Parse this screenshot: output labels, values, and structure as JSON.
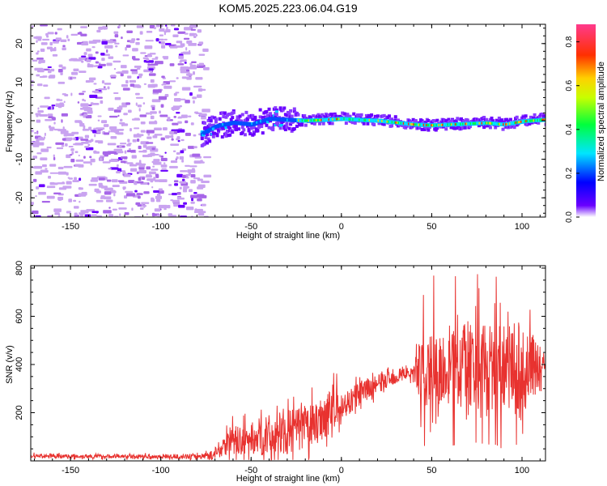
{
  "title": "KOM5.2025.223.06.04.G19",
  "chart_data": [
    {
      "type": "heatmap",
      "xlabel": "Height of straight line (km)",
      "ylabel": "Frequency (Hz)",
      "xlim": [
        -172,
        113
      ],
      "ylim": [
        -25,
        25
      ],
      "xticks": [
        -150,
        -100,
        -50,
        0,
        50,
        100
      ],
      "yticks": [
        -20,
        -10,
        0,
        10,
        20
      ],
      "noise_region_km": [
        -172,
        -78
      ],
      "signal_track": {
        "x": [
          -78,
          -70,
          -60,
          -50,
          -40,
          -30,
          -20,
          -10,
          0,
          10,
          20,
          30,
          40,
          50,
          60,
          70,
          80,
          90,
          100,
          113
        ],
        "freq": [
          -3.5,
          -1.5,
          -0.5,
          -1.0,
          0.5,
          0.2,
          0.0,
          0.2,
          0.5,
          0.2,
          0.0,
          -0.5,
          -1.0,
          -1.2,
          -1.0,
          -0.8,
          -0.6,
          -1.0,
          -0.2,
          0.3
        ]
      },
      "colorbar": {
        "label": "Normalized spectral amplitude",
        "range": [
          0.0,
          0.88
        ],
        "ticks": [
          "0.0",
          "0.2",
          "0.4",
          "0.6",
          "0.8"
        ]
      }
    },
    {
      "type": "line",
      "xlabel": "Height of straight line (km)",
      "ylabel": "SNR (v/v)",
      "xlim": [
        -172,
        113
      ],
      "ylim": [
        0,
        810
      ],
      "xticks": [
        -150,
        -100,
        -50,
        0,
        50,
        100
      ],
      "yticks": [
        200,
        400,
        600,
        800
      ],
      "color": "#e8322f",
      "envelope": {
        "x": [
          -172,
          -100,
          -80,
          -70,
          -62,
          -55,
          -45,
          -35,
          -25,
          -15,
          -5,
          0,
          10,
          20,
          30,
          40,
          45,
          50,
          60,
          70,
          80,
          90,
          100,
          113
        ],
        "base": [
          20,
          18,
          18,
          25,
          90,
          80,
          100,
          110,
          130,
          150,
          220,
          220,
          280,
          320,
          350,
          370,
          380,
          390,
          380,
          400,
          390,
          380,
          390,
          400
        ],
        "spread": [
          8,
          8,
          10,
          20,
          60,
          60,
          80,
          90,
          90,
          90,
          100,
          60,
          50,
          40,
          30,
          25,
          180,
          150,
          150,
          180,
          200,
          180,
          200,
          40
        ]
      }
    }
  ]
}
